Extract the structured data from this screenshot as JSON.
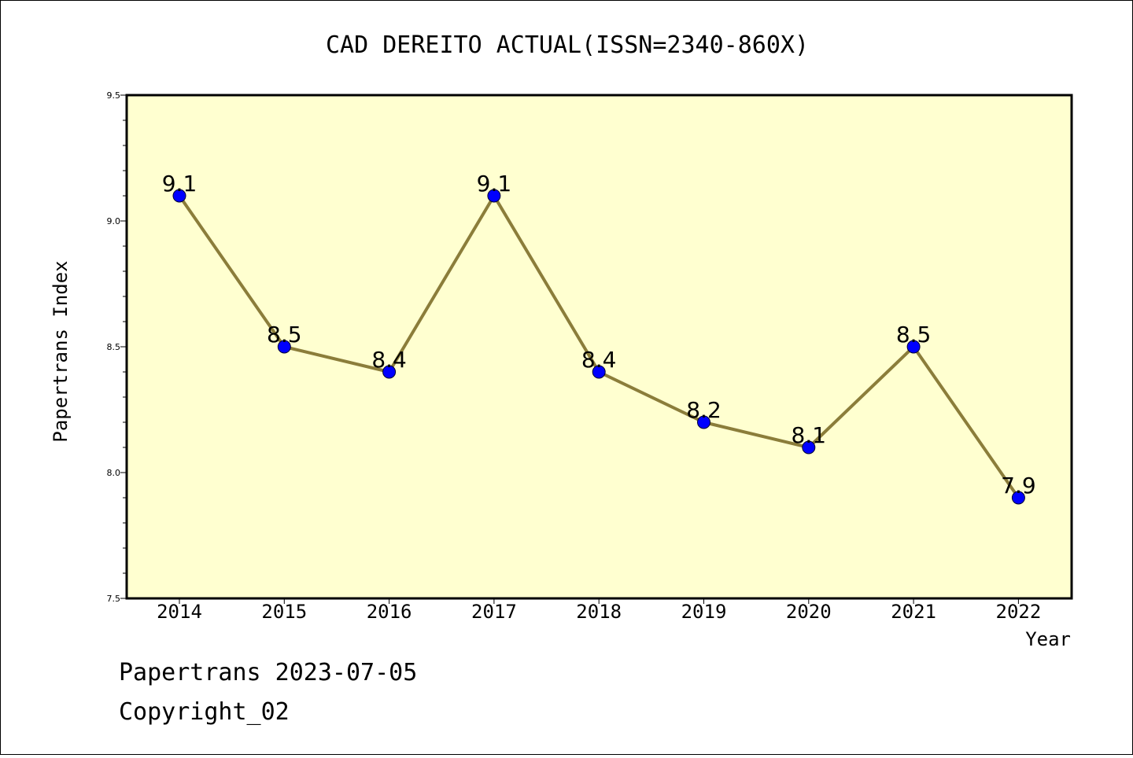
{
  "chart_data": {
    "type": "line",
    "title": "CAD DEREITO ACTUAL(ISSN=2340-860X)",
    "xlabel": "Year",
    "ylabel": "Papertrans Index",
    "categories": [
      "2014",
      "2015",
      "2016",
      "2017",
      "2018",
      "2019",
      "2020",
      "2021",
      "2022"
    ],
    "values": [
      9.1,
      8.5,
      8.4,
      9.1,
      8.4,
      8.2,
      8.1,
      8.5,
      7.9
    ],
    "data_labels": [
      "9.1",
      "8.5",
      "8.4",
      "9.1",
      "8.4",
      "8.2",
      "8.1",
      "8.5",
      "7.9"
    ],
    "ylim": [
      7.5,
      9.5
    ],
    "yticks": [
      "7.5",
      "8.0",
      "8.5",
      "9.0",
      "9.5"
    ],
    "grid": false,
    "colors": {
      "plot_bg": "#ffffd0",
      "line": "#8b7d3a",
      "marker": "#0000ff"
    }
  },
  "footer": {
    "line1": "Papertrans 2023-07-05",
    "line2": "Copyright_02"
  }
}
